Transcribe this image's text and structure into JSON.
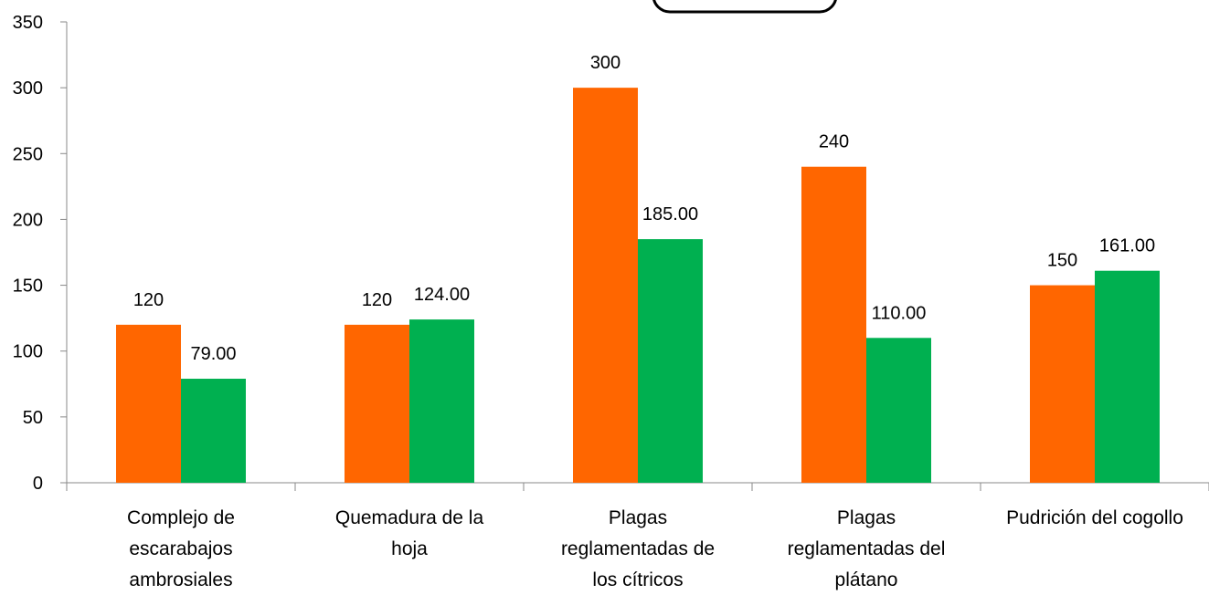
{
  "chart_data": {
    "type": "bar",
    "categories": [
      [
        "Complejo de",
        "escarabajos",
        "ambrosiales"
      ],
      [
        "Quemadura de la",
        "hoja"
      ],
      [
        "Plagas",
        "reglamentadas de",
        "los cítricos"
      ],
      [
        "Plagas",
        "reglamentadas del",
        "plátano"
      ],
      [
        "Pudrición del cogollo"
      ]
    ],
    "series": [
      {
        "color": "#FF6600",
        "values": [
          120,
          120,
          300,
          240,
          150
        ],
        "labels": [
          "120",
          "120",
          "300",
          "240",
          "150"
        ]
      },
      {
        "color": "#00B050",
        "values": [
          79,
          124,
          185,
          110,
          161
        ],
        "labels": [
          "79.00",
          "124.00",
          "185.00",
          "110.00",
          "161.00"
        ]
      }
    ],
    "ylim": [
      0,
      350
    ],
    "yticks": [
      0,
      50,
      100,
      150,
      200,
      250,
      300,
      350
    ],
    "grid": false
  }
}
